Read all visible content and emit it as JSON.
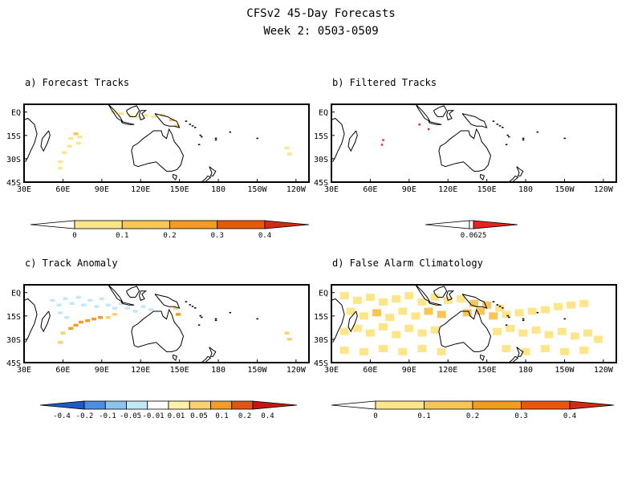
{
  "figure": {
    "title": "CFSv2 45-Day Forecasts",
    "subtitle": "Week 2: 0503-0509"
  },
  "axes": {
    "x_ticks": [
      "30E",
      "60E",
      "90E",
      "120E",
      "150E",
      "180",
      "150W",
      "120W"
    ],
    "x_lon": [
      30,
      60,
      90,
      120,
      150,
      180,
      210,
      240
    ],
    "y_ticks": [
      "EQ",
      "15S",
      "30S",
      "45S"
    ],
    "y_lat": [
      0,
      -15,
      -30,
      -45
    ],
    "lon_range": [
      30,
      250
    ],
    "lat_range": [
      -45,
      5
    ]
  },
  "colors": {
    "seq": [
      "#ffffff",
      "#fde58c",
      "#f8c557",
      "#f39c1f",
      "#e9570a",
      "#d42a10"
    ],
    "div": [
      "#1c5bc7",
      "#4a8fe0",
      "#8cc4ee",
      "#c3e8f5",
      "#ffffff",
      "#fff1a6",
      "#fbd071",
      "#f59b2a",
      "#e0550f",
      "#c4190a"
    ]
  },
  "colorbars": {
    "a": {
      "labels": [
        "0",
        "0.1",
        "0.2",
        "0.3",
        "0.4"
      ]
    },
    "b": {
      "labels": [
        "0.0625"
      ]
    },
    "c": {
      "labels": [
        "-0.4",
        "-0.2",
        "-0.1",
        "-0.05",
        "-0.01",
        "0.01",
        "0.05",
        "0.1",
        "0.2",
        "0.4"
      ]
    },
    "d": {
      "labels": [
        "0",
        "0.1",
        "0.2",
        "0.3",
        "0.4"
      ]
    }
  },
  "chart_data": [
    {
      "type": "heatmap",
      "title": "a) Forecast Tracks",
      "xlabel": "",
      "ylabel": "",
      "colorbar_levels": [
        0,
        0.1,
        0.2,
        0.3,
        0.4
      ],
      "cells": [
        {
          "lon": 99,
          "lat": 0,
          "val": 0.1
        },
        {
          "lon": 105,
          "lat": -1,
          "val": 0.1
        },
        {
          "lon": 112,
          "lat": -2,
          "val": 0.1
        },
        {
          "lon": 118,
          "lat": -3,
          "val": 0.1
        },
        {
          "lon": 124,
          "lat": -2,
          "val": 0.1
        },
        {
          "lon": 130,
          "lat": -3,
          "val": 0.1
        },
        {
          "lon": 137,
          "lat": -2,
          "val": 0.1
        },
        {
          "lon": 144,
          "lat": -5,
          "val": 0.15
        },
        {
          "lon": 148,
          "lat": -9,
          "val": 0.2
        },
        {
          "lon": 66,
          "lat": -17,
          "val": 0.1
        },
        {
          "lon": 70,
          "lat": -14,
          "val": 0.15
        },
        {
          "lon": 73,
          "lat": -16,
          "val": 0.1
        },
        {
          "lon": 72,
          "lat": -20,
          "val": 0.1
        },
        {
          "lon": 65,
          "lat": -22,
          "val": 0.1
        },
        {
          "lon": 61,
          "lat": -26,
          "val": 0.1
        },
        {
          "lon": 58,
          "lat": -32,
          "val": 0.1
        },
        {
          "lon": 58,
          "lat": -36,
          "val": 0.1
        },
        {
          "lon": 233,
          "lat": -23,
          "val": 0.1
        },
        {
          "lon": 235,
          "lat": -27,
          "val": 0.1
        }
      ]
    },
    {
      "type": "heatmap",
      "title": "b) Filtered Tracks",
      "xlabel": "",
      "ylabel": "",
      "colorbar_levels": [
        0.0625
      ],
      "cells": [
        {
          "lon": 98,
          "lat": -8,
          "val": 0.0625
        },
        {
          "lon": 105,
          "lat": -11,
          "val": 0.0625
        },
        {
          "lon": 70,
          "lat": -18,
          "val": 0.0625
        },
        {
          "lon": 69,
          "lat": -21,
          "val": 0.0625
        }
      ]
    },
    {
      "type": "heatmap",
      "title": "c) Track Anomaly",
      "xlabel": "",
      "ylabel": "",
      "colorbar_levels": [
        -0.4,
        -0.2,
        -0.1,
        -0.05,
        -0.01,
        0.01,
        0.05,
        0.1,
        0.2,
        0.4
      ],
      "cells": [
        {
          "lon": 52,
          "lat": -5,
          "val": -0.05
        },
        {
          "lon": 57,
          "lat": -8,
          "val": -0.05
        },
        {
          "lon": 62,
          "lat": -4,
          "val": -0.05
        },
        {
          "lon": 67,
          "lat": -7,
          "val": -0.05
        },
        {
          "lon": 72,
          "lat": -3,
          "val": -0.05
        },
        {
          "lon": 76,
          "lat": -8,
          "val": -0.05
        },
        {
          "lon": 81,
          "lat": -5,
          "val": -0.05
        },
        {
          "lon": 86,
          "lat": -9,
          "val": -0.05
        },
        {
          "lon": 90,
          "lat": -4,
          "val": -0.05
        },
        {
          "lon": 95,
          "lat": -8,
          "val": -0.05
        },
        {
          "lon": 100,
          "lat": -10,
          "val": -0.05
        },
        {
          "lon": 105,
          "lat": -7,
          "val": -0.05
        },
        {
          "lon": 110,
          "lat": -10,
          "val": -0.05
        },
        {
          "lon": 116,
          "lat": -12,
          "val": -0.05
        },
        {
          "lon": 122,
          "lat": -9,
          "val": -0.05
        },
        {
          "lon": 128,
          "lat": -11,
          "val": -0.05
        },
        {
          "lon": 58,
          "lat": -13,
          "val": -0.05
        },
        {
          "lon": 63,
          "lat": -16,
          "val": -0.05
        },
        {
          "lon": 147,
          "lat": -10,
          "val": 0.05
        },
        {
          "lon": 149,
          "lat": -14,
          "val": 0.1
        },
        {
          "lon": 66,
          "lat": -23,
          "val": 0.1
        },
        {
          "lon": 70,
          "lat": -21,
          "val": 0.1
        },
        {
          "lon": 74,
          "lat": -19,
          "val": 0.1
        },
        {
          "lon": 79,
          "lat": -18,
          "val": 0.1
        },
        {
          "lon": 84,
          "lat": -17,
          "val": 0.1
        },
        {
          "lon": 89,
          "lat": -16,
          "val": 0.1
        },
        {
          "lon": 95,
          "lat": -16,
          "val": 0.05
        },
        {
          "lon": 100,
          "lat": -14,
          "val": 0.05
        },
        {
          "lon": 60,
          "lat": -26,
          "val": 0.05
        },
        {
          "lon": 58,
          "lat": -32,
          "val": 0.05
        },
        {
          "lon": 233,
          "lat": -26,
          "val": 0.05
        },
        {
          "lon": 235,
          "lat": -30,
          "val": 0.05
        }
      ]
    },
    {
      "type": "heatmap",
      "title": "d) False Alarm Climatology",
      "xlabel": "",
      "ylabel": "",
      "colorbar_levels": [
        0,
        0.1,
        0.2,
        0.3,
        0.4
      ],
      "cells": [
        {
          "lon": 40,
          "lat": -2,
          "val": 0.1
        },
        {
          "lon": 50,
          "lat": -5,
          "val": 0.1
        },
        {
          "lon": 60,
          "lat": -3,
          "val": 0.1
        },
        {
          "lon": 70,
          "lat": -6,
          "val": 0.1
        },
        {
          "lon": 80,
          "lat": -4,
          "val": 0.1
        },
        {
          "lon": 90,
          "lat": -2,
          "val": 0.1
        },
        {
          "lon": 100,
          "lat": -6,
          "val": 0.1
        },
        {
          "lon": 110,
          "lat": -3,
          "val": 0.1
        },
        {
          "lon": 120,
          "lat": -5,
          "val": 0.1
        },
        {
          "lon": 130,
          "lat": -4,
          "val": 0.1
        },
        {
          "lon": 140,
          "lat": -7,
          "val": 0.15
        },
        {
          "lon": 150,
          "lat": -8,
          "val": 0.15
        },
        {
          "lon": 160,
          "lat": -10,
          "val": 0.1
        },
        {
          "lon": 45,
          "lat": -12,
          "val": 0.1
        },
        {
          "lon": 55,
          "lat": -15,
          "val": 0.1
        },
        {
          "lon": 65,
          "lat": -13,
          "val": 0.15
        },
        {
          "lon": 75,
          "lat": -16,
          "val": 0.1
        },
        {
          "lon": 85,
          "lat": -12,
          "val": 0.1
        },
        {
          "lon": 95,
          "lat": -15,
          "val": 0.1
        },
        {
          "lon": 105,
          "lat": -12,
          "val": 0.15
        },
        {
          "lon": 115,
          "lat": -14,
          "val": 0.15
        },
        {
          "lon": 135,
          "lat": -13,
          "val": 0.2
        },
        {
          "lon": 145,
          "lat": -12,
          "val": 0.2
        },
        {
          "lon": 155,
          "lat": -15,
          "val": 0.15
        },
        {
          "lon": 165,
          "lat": -14,
          "val": 0.1
        },
        {
          "lon": 175,
          "lat": -13,
          "val": 0.1
        },
        {
          "lon": 185,
          "lat": -12,
          "val": 0.1
        },
        {
          "lon": 195,
          "lat": -11,
          "val": 0.1
        },
        {
          "lon": 205,
          "lat": -9,
          "val": 0.1
        },
        {
          "lon": 215,
          "lat": -8,
          "val": 0.1
        },
        {
          "lon": 225,
          "lat": -7,
          "val": 0.1
        },
        {
          "lon": 40,
          "lat": -25,
          "val": 0.1
        },
        {
          "lon": 50,
          "lat": -23,
          "val": 0.1
        },
        {
          "lon": 60,
          "lat": -26,
          "val": 0.1
        },
        {
          "lon": 70,
          "lat": -22,
          "val": 0.1
        },
        {
          "lon": 80,
          "lat": -27,
          "val": 0.1
        },
        {
          "lon": 90,
          "lat": -23,
          "val": 0.1
        },
        {
          "lon": 100,
          "lat": -26,
          "val": 0.1
        },
        {
          "lon": 110,
          "lat": -24,
          "val": 0.1
        },
        {
          "lon": 158,
          "lat": -25,
          "val": 0.1
        },
        {
          "lon": 168,
          "lat": -23,
          "val": 0.1
        },
        {
          "lon": 178,
          "lat": -26,
          "val": 0.1
        },
        {
          "lon": 188,
          "lat": -24,
          "val": 0.1
        },
        {
          "lon": 198,
          "lat": -27,
          "val": 0.1
        },
        {
          "lon": 208,
          "lat": -25,
          "val": 0.1
        },
        {
          "lon": 218,
          "lat": -28,
          "val": 0.1
        },
        {
          "lon": 228,
          "lat": -26,
          "val": 0.1
        },
        {
          "lon": 236,
          "lat": -30,
          "val": 0.1
        },
        {
          "lon": 40,
          "lat": -37,
          "val": 0.1
        },
        {
          "lon": 55,
          "lat": -38,
          "val": 0.1
        },
        {
          "lon": 70,
          "lat": -36,
          "val": 0.1
        },
        {
          "lon": 85,
          "lat": -38,
          "val": 0.1
        },
        {
          "lon": 100,
          "lat": -36,
          "val": 0.1
        },
        {
          "lon": 115,
          "lat": -38,
          "val": 0.1
        },
        {
          "lon": 165,
          "lat": -36,
          "val": 0.1
        },
        {
          "lon": 180,
          "lat": -38,
          "val": 0.1
        },
        {
          "lon": 195,
          "lat": -36,
          "val": 0.1
        },
        {
          "lon": 210,
          "lat": -38,
          "val": 0.1
        },
        {
          "lon": 225,
          "lat": -37,
          "val": 0.1
        }
      ]
    }
  ]
}
